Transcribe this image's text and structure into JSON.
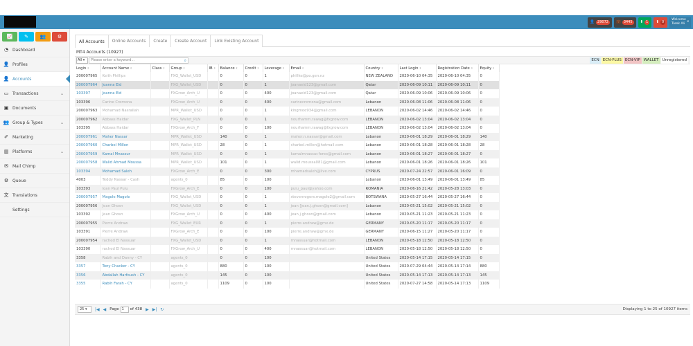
{
  "topbar": {
    "badges": [
      {
        "icon": "user-icon",
        "count": "29072",
        "style": "dark"
      },
      {
        "icon": "briefcase-icon",
        "count": "3445",
        "style": "dark"
      },
      {
        "icon": "download-icon",
        "count": "1",
        "style": "green"
      },
      {
        "icon": "upload-icon",
        "count": "0",
        "style": "red"
      }
    ],
    "user": {
      "line1": "Welcome",
      "line2": "Tarek Ali"
    }
  },
  "sidebar": {
    "quick_buttons": [
      {
        "icon": "chart-icon",
        "color": "#5cb85c"
      },
      {
        "icon": "pencil-icon",
        "color": "#00c0ef"
      },
      {
        "icon": "users-icon",
        "color": "#f39c12"
      },
      {
        "icon": "cogs-icon",
        "color": "#dd4b39"
      }
    ],
    "items": [
      {
        "label": "Dashboard",
        "icon": "dashboard-icon",
        "chevron": false
      },
      {
        "label": "Profiles",
        "icon": "user-icon",
        "chevron": false
      },
      {
        "label": "Accounts",
        "icon": "user-icon",
        "chevron": false,
        "active": true
      },
      {
        "label": "Transactions",
        "icon": "credit-card-icon",
        "chevron": true
      },
      {
        "label": "Documents",
        "icon": "image-icon",
        "chevron": false
      },
      {
        "label": "Group & Types",
        "icon": "users-icon",
        "chevron": true
      },
      {
        "label": "Marketing",
        "icon": "edit-icon",
        "chevron": false
      },
      {
        "label": "Platforms",
        "icon": "bar-chart-icon",
        "chevron": true
      },
      {
        "label": "Mail Chimp",
        "icon": "envelope-icon",
        "chevron": false
      },
      {
        "label": "Queue",
        "icon": "cogs-icon",
        "chevron": false
      },
      {
        "label": "Translations",
        "icon": "language-icon",
        "chevron": false
      },
      {
        "label": "Settings",
        "icon": "",
        "chevron": false
      }
    ]
  },
  "tabs": [
    "All Accounts",
    "Online Accounts",
    "Create",
    "Create Account",
    "Link Existing Account"
  ],
  "panel_title": "MT4 Accounts (10927)",
  "toolbar": {
    "filter": "All",
    "search_placeholder": "Please enter a keyword..."
  },
  "legend": [
    {
      "label": "ECN",
      "color": "#d9edf7"
    },
    {
      "label": "ECN-PLUS",
      "color": "#fcf8a3"
    },
    {
      "label": "ECN-VIP",
      "color": "#f2c4c4"
    },
    {
      "label": "WALLET",
      "color": "#d4edbd"
    },
    {
      "label": "Unregistered",
      "color": "#ffffff"
    }
  ],
  "columns": [
    "Login",
    "Account Name",
    "Class",
    "Group",
    "IB",
    "Balance",
    "Credit",
    "Leverage",
    "Email",
    "Country",
    "Last Login",
    "Registration Date",
    "Equity"
  ],
  "rows": [
    {
      "login": "200007965",
      "name": "Keith Phillips",
      "group": "FXG_Wallet_USD",
      "balance": "0",
      "credit": "0",
      "leverage": "1",
      "email": "phillke@po.gen.nz",
      "country": "NEW ZEALAND",
      "last": "2020-06-10 04:35",
      "reg": "2020-06-10 04:35",
      "equity": "0",
      "link": false
    },
    {
      "login": "200007964",
      "name": "Joanna Eid",
      "group": "FXG_Wallet_USD",
      "balance": "0",
      "credit": "0",
      "leverage": "1",
      "email": "joanaeid123@gmail.com",
      "country": "Qatar",
      "last": "2020-06-09 10:11",
      "reg": "2020-06-09 10:11",
      "equity": "0",
      "link": true
    },
    {
      "login": "103397",
      "name": "Joanna Eid",
      "group": "FXGrow_Arch_U",
      "balance": "0",
      "credit": "0",
      "leverage": "400",
      "email": "joanaeid123@gmail.com",
      "country": "Qatar",
      "last": "2020-06-09 10:06",
      "reg": "2020-06-09 10:06",
      "equity": "0",
      "link": true
    },
    {
      "login": "103396",
      "name": "Carine Cremona",
      "group": "FXGrow_Arch_U",
      "balance": "0",
      "credit": "0",
      "leverage": "400",
      "email": "carinecremona@gmail.com",
      "country": "Lebanon",
      "last": "2020-06-08 11:06",
      "reg": "2020-06-08 11:06",
      "equity": "0",
      "link": false
    },
    {
      "login": "200007963",
      "name": "Mohamad Nasrallah",
      "group": "MPR_Wallet_USD",
      "balance": "0",
      "credit": "0",
      "leverage": "1",
      "email": "kingmoe934@gmail.com",
      "country": "LEBANON",
      "last": "2020-06-02 14:46",
      "reg": "2020-06-02 14:46",
      "equity": "0",
      "link": false
    },
    {
      "login": "200007962",
      "name": "Abbass Haidar",
      "group": "FXG_Wallet_PLN",
      "balance": "0",
      "credit": "0",
      "leverage": "1",
      "email": "nourhamm.rawag@fxgrow.com",
      "country": "LEBANON",
      "last": "2020-06-02 13:04",
      "reg": "2020-06-02 13:04",
      "equity": "0",
      "link": false
    },
    {
      "login": "103395",
      "name": "Abbass Haidar",
      "group": "FXGrow_Arch_F",
      "balance": "0",
      "credit": "0",
      "leverage": "100",
      "email": "nourhamm.rawag@fxgrow.com",
      "country": "LEBANON",
      "last": "2020-06-02 13:04",
      "reg": "2020-06-02 13:04",
      "equity": "0",
      "link": false
    },
    {
      "login": "200007961",
      "name": "Maher Nassar",
      "group": "MPR_Wallet_USD",
      "balance": "140",
      "credit": "0",
      "leverage": "1",
      "email": "maher.n.nassar@gmail.com",
      "country": "Lebanon",
      "last": "2020-06-01 18:29",
      "reg": "2020-06-01 18:29",
      "equity": "140",
      "link": true
    },
    {
      "login": "200007960",
      "name": "Charbel Millen",
      "group": "MPR_Wallet_USD",
      "balance": "28",
      "credit": "0",
      "leverage": "1",
      "email": "charbel.millen@hotmail.com",
      "country": "Lebanon",
      "last": "2020-06-01 18:28",
      "reg": "2020-06-01 18:28",
      "equity": "28",
      "link": true
    },
    {
      "login": "200007959",
      "name": "Kamal Mnassur",
      "group": "MPR_Wallet_USD",
      "balance": "0",
      "credit": "0",
      "leverage": "1",
      "email": "kamalmnassur.forex@gmail.com",
      "country": "Lebanon",
      "last": "2020-06-01 18:27",
      "reg": "2020-06-01 18:27",
      "equity": "0",
      "link": true
    },
    {
      "login": "200007958",
      "name": "Walid Ahmad Moussa",
      "group": "MPR_Wallet_USD",
      "balance": "101",
      "credit": "0",
      "leverage": "1",
      "email": "walid.moussa081@gmail.com",
      "country": "Lebanon",
      "last": "2020-06-01 18:26",
      "reg": "2020-06-01 18:26",
      "equity": "101",
      "link": true
    },
    {
      "login": "103394",
      "name": "Mohamad Saleh",
      "group": "FXGrow_Arch_E",
      "balance": "0",
      "credit": "0",
      "leverage": "300",
      "email": "mhamadsaleh@live.com",
      "country": "CYPRUS",
      "last": "2020-07-24 22:57",
      "reg": "2020-06-01 16:09",
      "equity": "0",
      "link": true
    },
    {
      "login": "4003",
      "name": "Teddy Nassar - Cash",
      "group": "agents_0",
      "balance": "85",
      "credit": "0",
      "leverage": "100",
      "email": "",
      "country": "Lebanon",
      "last": "2020-06-01 13:49",
      "reg": "2020-06-01 13:49",
      "equity": "85",
      "link": false
    },
    {
      "login": "103393",
      "name": "Ioan Paul Puiu",
      "group": "FXGrow_Arch_E",
      "balance": "0",
      "credit": "0",
      "leverage": "100",
      "email": "puiu_paul@yahoo.com",
      "country": "ROMANIA",
      "last": "2020-06-16 21:42",
      "reg": "2020-05-28 13:03",
      "equity": "0",
      "link": false
    },
    {
      "login": "200007957",
      "name": "Magole Magole",
      "group": "FXG_Wallet_USD",
      "balance": "0",
      "credit": "0",
      "leverage": "1",
      "email": "stevenrogers.magole2@gmail.com",
      "country": "BOTSWANA",
      "last": "2020-05-27 16:44",
      "reg": "2020-05-27 16:44",
      "equity": "0",
      "link": true
    },
    {
      "login": "200007956",
      "name": "Jean Ghosn",
      "group": "FXG_Wallet_USD",
      "balance": "0",
      "credit": "0",
      "leverage": "1",
      "email": "jean [jean.j.ghosn@gmail.com]",
      "country": "Lebanon",
      "last": "2020-05-21 15:02",
      "reg": "2020-05-21 15:02",
      "equity": "0",
      "link": false
    },
    {
      "login": "103392",
      "name": "Jean Ghosn",
      "group": "FXGrow_Arch_U",
      "balance": "0",
      "credit": "0",
      "leverage": "400",
      "email": "jean.j.ghosn@gmail.com",
      "country": "Lebanon",
      "last": "2020-05-21 11:23",
      "reg": "2020-05-21 11:23",
      "equity": "0",
      "link": false
    },
    {
      "login": "200007955",
      "name": "Pierre Andraw",
      "group": "FXG_Wallet_EUR",
      "balance": "0",
      "credit": "0",
      "leverage": "1",
      "email": "pierre.andraw@gmx.de",
      "country": "GERMANY",
      "last": "2020-05-20 11:17",
      "reg": "2020-05-20 11:17",
      "equity": "0",
      "link": false
    },
    {
      "login": "103391",
      "name": "Pierre Andraw",
      "group": "FXGrow_Arch_E",
      "balance": "0",
      "credit": "0",
      "leverage": "100",
      "email": "pierre.andraw@gmx.de",
      "country": "GERMANY",
      "last": "2020-06-15 11:27",
      "reg": "2020-05-20 11:17",
      "equity": "0",
      "link": false
    },
    {
      "login": "200007954",
      "name": "rached El Nassuar",
      "group": "FXG_Wallet_USD",
      "balance": "0",
      "credit": "0",
      "leverage": "1",
      "email": "rnnassuar@hotmail.com",
      "country": "LEBANON",
      "last": "2020-05-18 12:50",
      "reg": "2020-05-18 12:50",
      "equity": "0",
      "link": false
    },
    {
      "login": "103390",
      "name": "rached El Nassuar",
      "group": "FXGrow_Arch_U",
      "balance": "0",
      "credit": "0",
      "leverage": "400",
      "email": "rnnassuar@hotmail.com",
      "country": "LEBANON",
      "last": "2020-05-18 12:50",
      "reg": "2020-05-18 12:50",
      "equity": "0",
      "link": false
    },
    {
      "login": "3358",
      "name": "Rabih and Danny - CY",
      "group": "agents_0",
      "balance": "0",
      "credit": "0",
      "leverage": "100",
      "email": "",
      "country": "United States",
      "last": "2020-05-14 17:15",
      "reg": "2020-05-14 17:15",
      "equity": "0",
      "link": false
    },
    {
      "login": "3357",
      "name": "Tony Chacker - CY",
      "group": "agents_0",
      "balance": "880",
      "credit": "0",
      "leverage": "100",
      "email": "",
      "country": "United States",
      "last": "2020-07-29 04:44",
      "reg": "2020-05-14 17:14",
      "equity": "880",
      "link": true
    },
    {
      "login": "3356",
      "name": "Abdallah Harfoush - CY",
      "group": "agents_0",
      "balance": "145",
      "credit": "0",
      "leverage": "100",
      "email": "",
      "country": "United States",
      "last": "2020-05-14 17:13",
      "reg": "2020-05-14 17:13",
      "equity": "145",
      "link": true
    },
    {
      "login": "3355",
      "name": "Rabih Farah - CY",
      "group": "agents_0",
      "balance": "1109",
      "credit": "0",
      "leverage": "100",
      "email": "",
      "country": "United States",
      "last": "2020-07-27 14:58",
      "reg": "2020-05-14 17:13",
      "equity": "1109",
      "link": true
    }
  ],
  "pager": {
    "page_size": "25",
    "page_label": "Page",
    "page": "1",
    "of_label": "of 438",
    "display": "Displaying 1 to 25 of 10927 items"
  }
}
